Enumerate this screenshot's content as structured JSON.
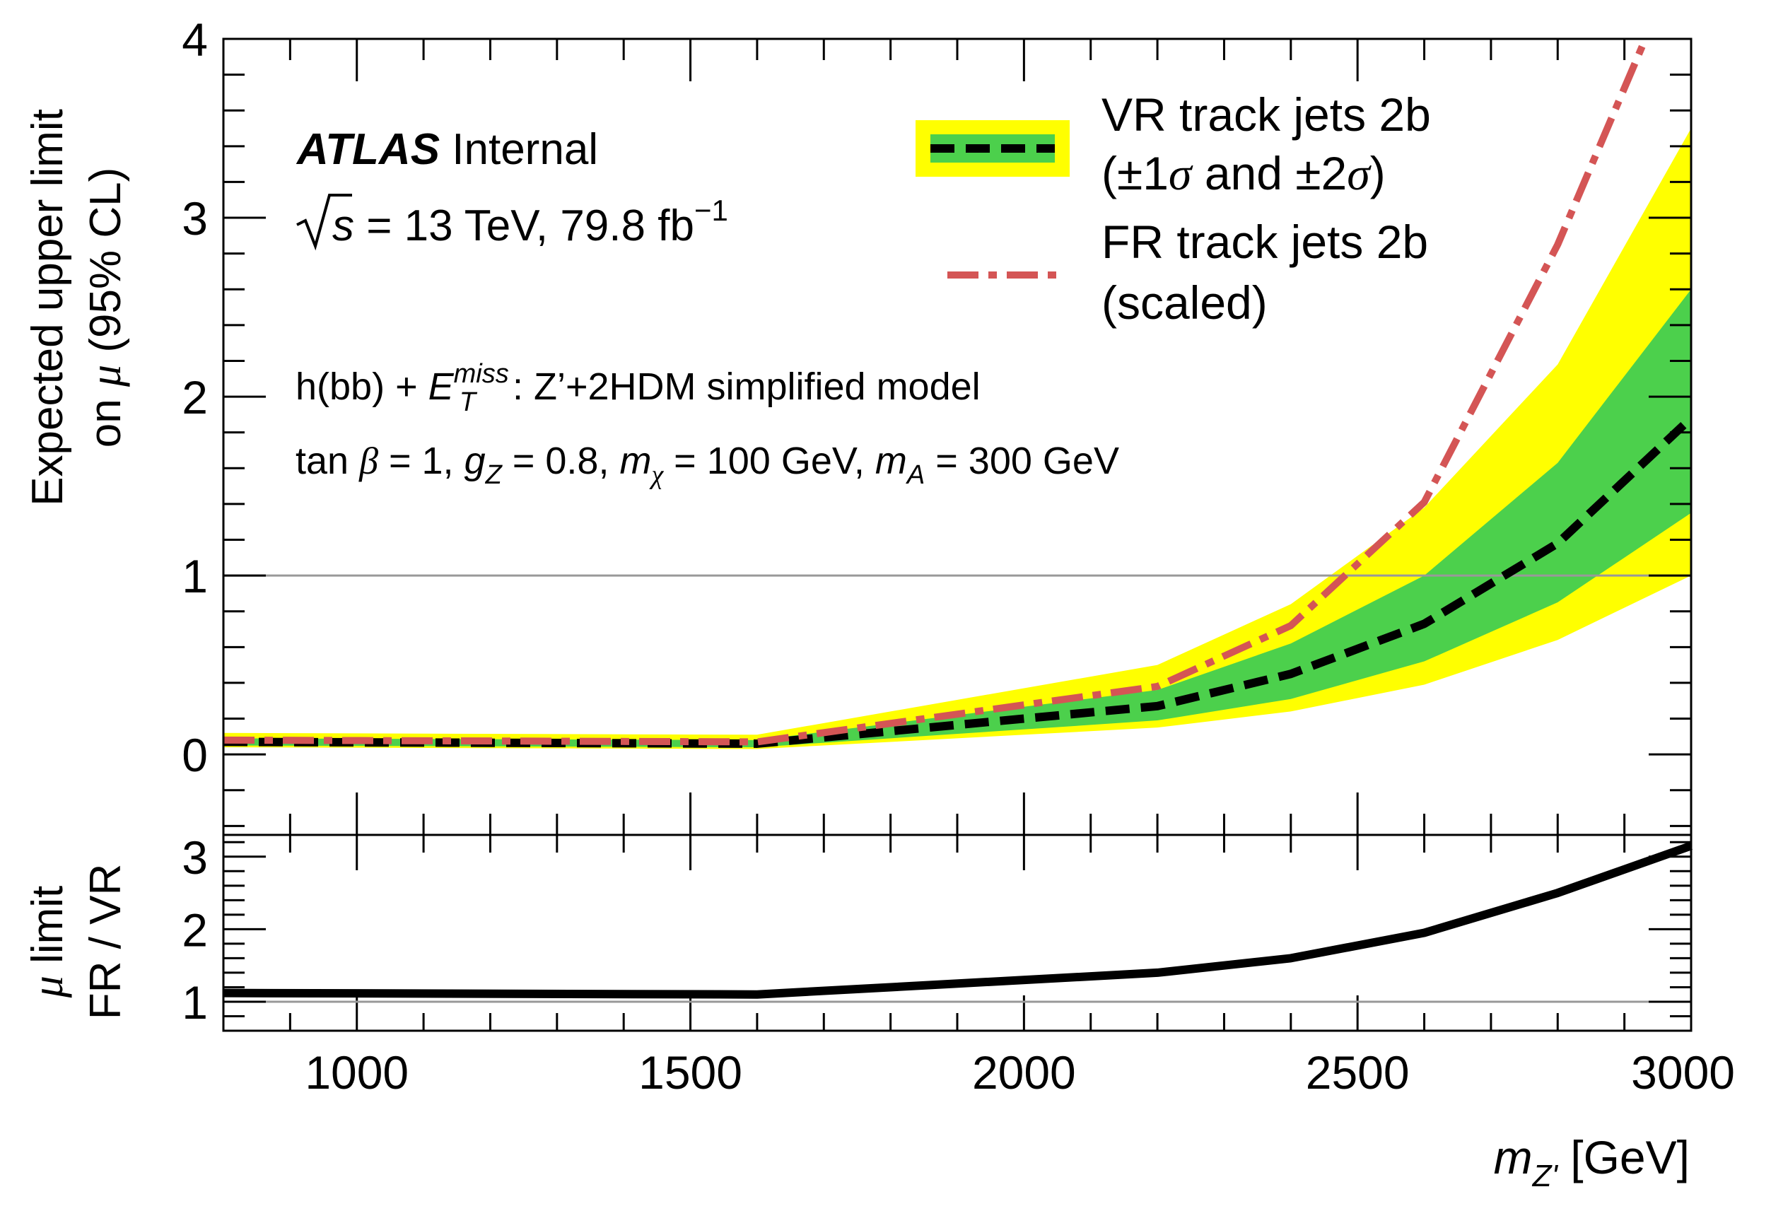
{
  "chart_data": [
    {
      "type": "line",
      "panel": "main",
      "ylabel_line1": "Expected upper limit",
      "ylabel_line2_prefix": "on ",
      "ylabel_line2_symbol": "μ",
      "ylabel_line2_suffix": " (95% CL)",
      "ylim": [
        -0.45,
        4.0
      ],
      "xlim": [
        800,
        3000
      ],
      "yticks": [
        0,
        1,
        2,
        3,
        4
      ],
      "ytick_labels": [
        "0",
        "1",
        "2",
        "3",
        "4"
      ],
      "reference_line": 1.0,
      "x": [
        800,
        1600,
        2200,
        2400,
        2600,
        2800,
        3000
      ],
      "series": [
        {
          "name": "VR track jets 2b",
          "style": "dashed",
          "color": "#000000",
          "values": [
            0.07,
            0.06,
            0.27,
            0.45,
            0.73,
            1.18,
            1.88
          ],
          "band_1sigma": {
            "low": [
              0.05,
              0.04,
              0.19,
              0.31,
              0.52,
              0.85,
              1.35
            ],
            "high": [
              0.09,
              0.08,
              0.36,
              0.62,
              1.0,
              1.63,
              2.6
            ],
            "color": "#4cd04c"
          },
          "band_2sigma": {
            "low": [
              0.04,
              0.03,
              0.15,
              0.24,
              0.39,
              0.64,
              1.0
            ],
            "high": [
              0.12,
              0.11,
              0.5,
              0.84,
              1.38,
              2.18,
              3.5
            ],
            "color": "#ffff00"
          }
        },
        {
          "name": "FR track jets 2b",
          "style": "dash-dot",
          "color": "#d45555",
          "values": [
            0.08,
            0.07,
            0.38,
            0.72,
            1.41,
            2.85,
            4.6
          ]
        }
      ]
    },
    {
      "type": "line",
      "panel": "ratio",
      "ylabel_line1_symbol": "μ",
      "ylabel_line1_suffix": " limit",
      "ylabel_line2": "FR / VR",
      "xlabel_symbol": "m",
      "xlabel_subscript": "Z'",
      "xlabel_suffix": " [GeV]",
      "xlim": [
        800,
        3000
      ],
      "ylim": [
        0.6,
        3.3
      ],
      "yticks": [
        1,
        2,
        3
      ],
      "ytick_labels": [
        "1",
        "2",
        "3"
      ],
      "xticks": [
        1000,
        1500,
        2000,
        2500,
        3000
      ],
      "xtick_labels": [
        "1000",
        "1500",
        "2000",
        "2500",
        "3000"
      ],
      "reference_line": 1.0,
      "x": [
        800,
        1600,
        2200,
        2400,
        2600,
        2800,
        3000
      ],
      "values": [
        1.12,
        1.1,
        1.4,
        1.6,
        1.95,
        2.5,
        3.15
      ],
      "color": "#000000"
    }
  ],
  "atlas_label": {
    "bold": "ATLAS",
    "rest": " Internal"
  },
  "energy": {
    "sqrt_s": "s",
    "text": " = 13 TeV, 79.8 fb",
    "exponent": "−1"
  },
  "model": {
    "prefix": "h(bb) + ",
    "e_symbol": "E",
    "e_sub": "T",
    "e_sup": "miss",
    "suffix": ": Z’+2HDM simplified model"
  },
  "params": {
    "tan": "tan ",
    "beta": "β",
    "p1": " = 1, ",
    "g": "g",
    "g_sub": "Z",
    "p2": " = 0.8, ",
    "m1": "m",
    "m1_sub": "χ",
    "p3": " = 100 GeV, ",
    "m2": "m",
    "m2_sub": "A",
    "p4": " = 300 GeV"
  },
  "legend": {
    "vr_line1": "VR track jets 2b",
    "vr_line2_a": "(",
    "vr_pm1": "±1",
    "vr_sigma1": "σ",
    "vr_and": " and ",
    "vr_pm2": "±2",
    "vr_sigma2": "σ",
    "vr_close": ")",
    "fr_line1": "FR track jets 2b",
    "fr_line2": "(scaled)"
  },
  "colors": {
    "yellow": "#ffff00",
    "green": "#4cd04c",
    "red": "#d45555",
    "grey": "#999999"
  }
}
